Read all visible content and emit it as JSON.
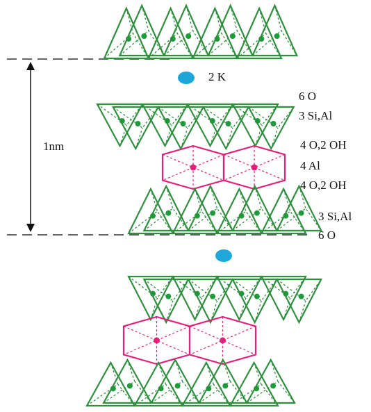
{
  "labels": {
    "potassium": "2 K",
    "scale": "1nm",
    "layers": [
      "6 O",
      "3 Si,Al",
      "4 O,2 OH",
      "4 Al",
      "4 O,2 OH",
      "3 Si,Al",
      "6 O"
    ]
  }
}
